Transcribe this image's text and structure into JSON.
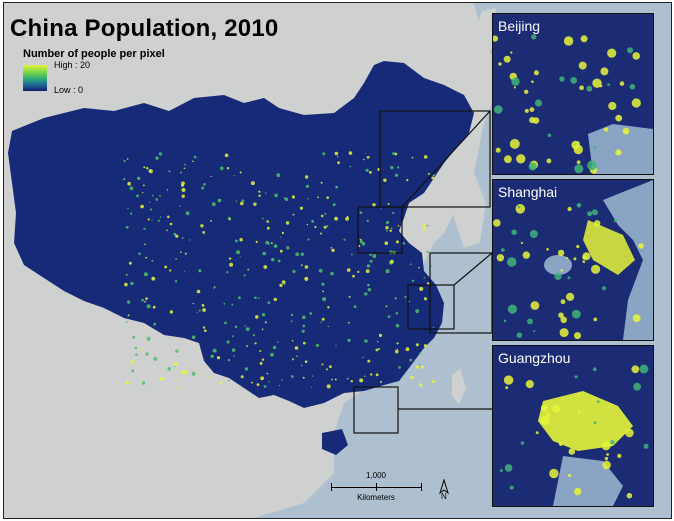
{
  "title": "China Population, 2010",
  "legend": {
    "title": "Number of people per pixel",
    "high_label": "High : 20",
    "low_label": "Low : 0",
    "colors": {
      "high": "#e6f53a",
      "mid": "#2aa67a",
      "low": "#141c6a"
    }
  },
  "insets": [
    {
      "label": "Beijing"
    },
    {
      "label": "Shanghai"
    },
    {
      "label": "Guangzhou"
    }
  ],
  "scale_bar": {
    "distance": "1,000",
    "unit": "Kilometers"
  },
  "north_arrow": {
    "label": "N",
    "icon": "north-arrow-icon"
  },
  "colors": {
    "sea": "#aebfcf",
    "land_outside": "#cfd0d0",
    "china": "#172a78",
    "hotspot": "#e6f53a"
  }
}
